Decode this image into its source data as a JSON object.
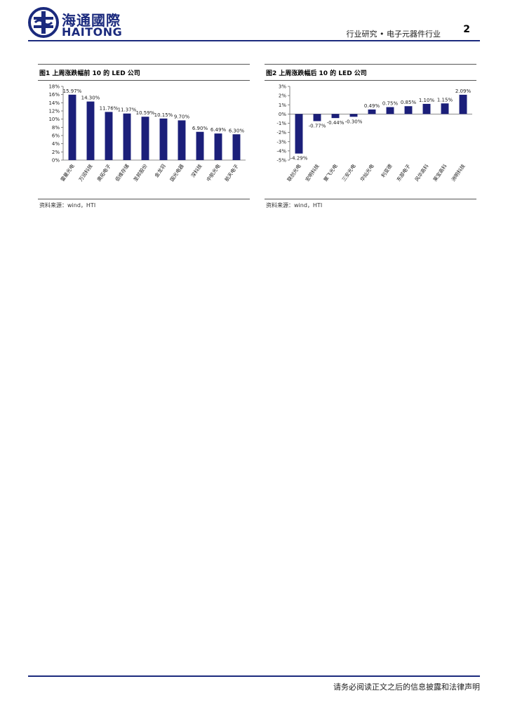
{
  "header": {
    "logo_cn": "海通國際",
    "logo_en": "HAITONG",
    "category": "行业研究 • 电子元器件行业",
    "page_number": "2"
  },
  "colors": {
    "brand": "#1b2a7d",
    "bar": "#1b1f7a"
  },
  "figures": [
    {
      "title": "图1  上周涨跌幅前 10 的 LED 公司",
      "source": "资料来源：wind，HTI"
    },
    {
      "title": "图2  上周涨跌幅后 10 的 LED 公司",
      "source": "资料来源：wind，HTI"
    }
  ],
  "chart_data": [
    {
      "type": "bar",
      "categories": [
        "雷曼光电",
        "万润科技",
        "奥拓电子",
        "佰维存储",
        "圣邦股份",
        "金龙羽",
        "国光电器",
        "深科技",
        "中航光电",
        "航天电子"
      ],
      "values": [
        15.97,
        14.3,
        11.76,
        11.37,
        10.59,
        10.15,
        9.7,
        6.9,
        6.49,
        6.3
      ],
      "data_labels": [
        "15.97%",
        "14.30%",
        "11.76%",
        "11.37%",
        "10.59%",
        "10.15%",
        "9.70%",
        "6.90%",
        "6.49%",
        "6.30%"
      ],
      "y_ticks": [
        "0%",
        "2%",
        "4%",
        "6%",
        "8%",
        "10%",
        "12%",
        "14%",
        "16%",
        "18%"
      ],
      "ylim": [
        0,
        18
      ],
      "grid": false,
      "legend": "none"
    },
    {
      "type": "bar",
      "categories": [
        "联创光电",
        "宏明科技",
        "聚飞光电",
        "三安光电",
        "华灿光电",
        "利亚德",
        "东部电子",
        "风华高科",
        "莱宝高科",
        "洲明科技"
      ],
      "values": [
        -4.29,
        -0.77,
        -0.44,
        -0.3,
        0.49,
        0.75,
        0.85,
        1.1,
        1.15,
        2.09
      ],
      "data_labels": [
        "-4.29%",
        "-0.77%",
        "-0.44%",
        "-0.30%",
        "0.49%",
        "0.75%",
        "0.85%",
        "1.10%",
        "1.15%",
        "2.09%"
      ],
      "y_ticks": [
        "-5%",
        "-4%",
        "-3%",
        "-2%",
        "-1%",
        "0%",
        "1%",
        "2%",
        "3%"
      ],
      "ylim": [
        -5,
        3
      ],
      "grid": false,
      "legend": "none"
    }
  ],
  "footer": {
    "disclaimer": "请务必阅读正文之后的信息披露和法律声明"
  }
}
